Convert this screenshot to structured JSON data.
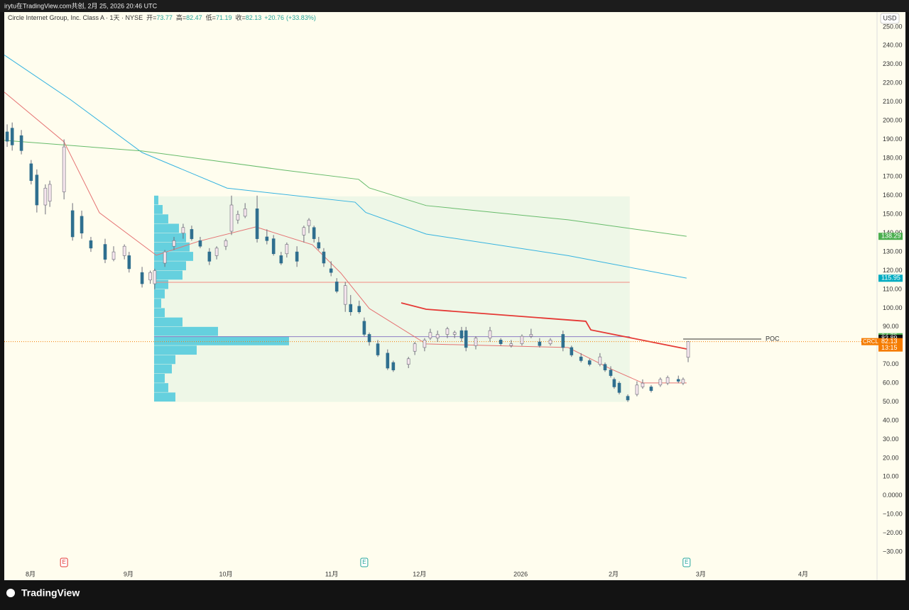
{
  "header": {
    "text": "irytu在TradingView.com共创, 2月 25, 2026 20:46 UTC"
  },
  "chart_data": {
    "type": "candlestick",
    "title": "Circle Internet Group, Inc. Class A · 1天 · NYSE",
    "legend": [
      {
        "label": "开=",
        "value": 73.77
      },
      {
        "label": "高=",
        "value": 82.47
      },
      {
        "label": "低=",
        "value": 71.19
      },
      {
        "label": "收=",
        "value": 82.13
      }
    ],
    "change": {
      "value": 20.76,
      "label": "+20.76"
    },
    "change_pct": {
      "value": 33.83,
      "label": "(+33.83%)"
    },
    "currency": "USD",
    "up_color": "#f6e6ee",
    "down_color": "#2f6f8f",
    "wick_color": "#6d6d7a",
    "x": [
      -7.4,
      -5.8,
      -2.9,
      0.2,
      2.0,
      4.7,
      6.1,
      10.6,
      13.3,
      16.2,
      19.1,
      23.6,
      26.3,
      29.7,
      31.2,
      35.3,
      37.9,
      39.3,
      42.5,
      45.4,
      48.3,
      51.0,
      53.7,
      56.6,
      58.9,
      61.8,
      63.6,
      65.6,
      67.9,
      71.7,
      74.8,
      76.9,
      79.3,
      81.1,
      84.3,
      86.5,
      88.1,
      89.7,
      91.2,
      92.8,
      95.1,
      96.9,
      99.6,
      101.3,
      104.0,
      105.6,
      107.2,
      109.9,
      113.0,
      114.8,
      119.6,
      121.6,
      124.7,
      126.5,
      128.8,
      131.9,
      134.2,
      136.4,
      137.8,
      140.9,
      145.4,
      148.8,
      152.1,
      155.5,
      158.4,
      161.1,
      164.5,
      168.5,
      171.2,
      174.2,
      176.9,
      180.2,
      181.8,
      183.6,
      184.7,
      186.3,
      189.0,
      191.9,
      193.7,
      196.4,
      199.3,
      201.6,
      205.0,
      206.5,
      208.1
    ],
    "open": [
      194,
      196,
      192,
      177,
      171,
      155,
      157,
      162,
      152,
      149,
      136,
      134,
      126,
      128,
      128,
      119,
      115,
      113,
      124,
      133,
      140,
      142,
      136,
      130,
      128,
      133,
      141,
      147,
      149,
      153,
      138,
      137,
      128,
      129,
      130,
      139,
      144,
      143,
      135,
      130,
      121,
      114,
      102,
      102,
      101,
      93,
      86,
      81,
      76,
      71,
      70,
      77,
      79,
      84,
      84,
      86,
      86,
      88,
      88,
      80,
      84,
      83,
      80,
      81,
      85,
      82,
      81,
      86,
      79,
      74,
      72,
      70,
      70,
      67,
      62,
      60,
      53,
      54,
      58,
      58,
      59,
      60,
      62,
      60,
      73.77
    ],
    "high": [
      198,
      199,
      195,
      179,
      174,
      166,
      168,
      190,
      156,
      152,
      138,
      137,
      133,
      134,
      130,
      122,
      120,
      121,
      131,
      138,
      145,
      144,
      138,
      132,
      133,
      137,
      160,
      152,
      156,
      160,
      142,
      139,
      130,
      135,
      133,
      144,
      148,
      144,
      138,
      132,
      125,
      116,
      114,
      107,
      104,
      95,
      87,
      83,
      78,
      72,
      74,
      82,
      84,
      89,
      88,
      90,
      88,
      90,
      90,
      85,
      90,
      84,
      83,
      86,
      89,
      84,
      84,
      88,
      80,
      76,
      73,
      76,
      71,
      69,
      63,
      61,
      54,
      61,
      62,
      59,
      63,
      64,
      64,
      63,
      82.47
    ],
    "low": [
      186,
      184,
      182,
      166,
      151,
      150,
      154,
      158,
      136,
      137,
      130,
      124,
      125,
      126,
      119,
      111,
      113,
      110,
      122,
      131,
      137,
      136,
      132,
      123,
      126,
      131,
      139,
      145,
      148,
      135,
      134,
      128,
      123,
      127,
      122,
      135,
      140,
      135,
      131,
      122,
      117,
      108,
      98,
      96,
      97,
      85,
      80,
      74,
      67,
      66,
      68,
      75,
      77,
      83,
      82,
      84,
      84,
      82,
      77,
      78,
      82,
      80,
      79,
      80,
      84,
      79,
      80,
      77,
      74,
      71,
      69,
      69,
      66,
      63,
      57,
      54,
      50,
      53,
      57,
      55,
      58,
      59,
      60,
      59,
      71.19
    ],
    "close": [
      189,
      187,
      184,
      168,
      155,
      164,
      166,
      186,
      138,
      140,
      132,
      126,
      130,
      133,
      121,
      113,
      119,
      120,
      130,
      136,
      143,
      137,
      133,
      125,
      132,
      136,
      155,
      150,
      153,
      137,
      136,
      129,
      124,
      134,
      125,
      143,
      147,
      137,
      132,
      124,
      119,
      109,
      112,
      98,
      98,
      86,
      82,
      75,
      68,
      67,
      73,
      81,
      83,
      87,
      86,
      89,
      87,
      84,
      79,
      84,
      88,
      81,
      81,
      85,
      86,
      80,
      83,
      79,
      75,
      72,
      70,
      74,
      67,
      64,
      58,
      55,
      51,
      59,
      60,
      56,
      62,
      63,
      61,
      62,
      82.13
    ],
    "xlim": [
      -8.31,
      267.87
    ],
    "xticks": [
      {
        "value": 0,
        "label": "8月"
      },
      {
        "value": 31,
        "label": "9月"
      },
      {
        "value": 61.8,
        "label": "10月"
      },
      {
        "value": 95.3,
        "label": "11月"
      },
      {
        "value": 123.1,
        "label": "12月"
      },
      {
        "value": 155.1,
        "label": "2026"
      },
      {
        "value": 184.5,
        "label": "2月"
      },
      {
        "value": 212.1,
        "label": "3月"
      },
      {
        "value": 244.5,
        "label": "4月"
      }
    ],
    "ylim": [
      -45.1,
      257.9
    ],
    "yticks": [
      {
        "value": 250,
        "label": "250.00"
      },
      {
        "value": 240,
        "label": "240.00"
      },
      {
        "value": 230,
        "label": "230.00"
      },
      {
        "value": 220,
        "label": "220.00"
      },
      {
        "value": 210,
        "label": "210.00"
      },
      {
        "value": 200,
        "label": "200.00"
      },
      {
        "value": 190,
        "label": "190.00"
      },
      {
        "value": 180,
        "label": "180.00"
      },
      {
        "value": 170,
        "label": "170.00"
      },
      {
        "value": 160,
        "label": "160.00"
      },
      {
        "value": 150,
        "label": "150.00"
      },
      {
        "value": 140,
        "label": "140.00"
      },
      {
        "value": 130,
        "label": "130.00"
      },
      {
        "value": 120,
        "label": "120.00"
      },
      {
        "value": 110,
        "label": "110.00"
      },
      {
        "value": 100,
        "label": "100.00"
      },
      {
        "value": 90,
        "label": "90.00"
      },
      {
        "value": 80,
        "label": "80.00"
      },
      {
        "value": 70,
        "label": "70.00"
      },
      {
        "value": 60,
        "label": "60.00"
      },
      {
        "value": 50,
        "label": "50.00"
      },
      {
        "value": 40,
        "label": "40.00"
      },
      {
        "value": 30,
        "label": "30.00"
      },
      {
        "value": 20,
        "label": "20.00"
      },
      {
        "value": 10,
        "label": "10.00"
      },
      {
        "value": 0,
        "label": "0.0000"
      },
      {
        "value": -10,
        "label": "−10.00"
      },
      {
        "value": -20,
        "label": "−20.00"
      },
      {
        "value": -30,
        "label": "−30.00"
      }
    ],
    "lines": [
      {
        "color": "#35b3e0",
        "x": [
          -8.3,
          12.8,
          35.3,
          62.2,
          102.7,
          106.1,
          125.2,
          170.1,
          207.6
        ],
        "values": [
          235,
          211,
          183,
          164,
          156.5,
          151,
          139.5,
          128,
          116
        ]
      },
      {
        "color": "#66bb6a",
        "x": [
          -8.3,
          35.3,
          80.2,
          103.8,
          107.2,
          125.2,
          170.1,
          207.6
        ],
        "values": [
          189.5,
          183.8,
          173.6,
          168.7,
          164.1,
          154.7,
          147.1,
          138.3
        ]
      },
      {
        "color": "#e57373",
        "x": [
          -8.3,
          10.6,
          21.8,
          39.8,
          53.3,
          71.3,
          89.2,
          98.2,
          107.2,
          125.2,
          170.1,
          183.6,
          193.7,
          207.6
        ],
        "values": [
          215.2,
          188.7,
          150.9,
          128.2,
          135.7,
          143.3,
          133.8,
          118.7,
          99.8,
          80.9,
          79,
          67.6,
          60.1,
          60.1
        ]
      },
      {
        "color": "#e53935",
        "x": [
          117.3,
          125.2,
          175.7,
          177.3,
          207.6
        ],
        "values": [
          102.8,
          99.4,
          93,
          88.4,
          78.2
        ]
      }
    ],
    "volume_profile": {
      "from": 39.1,
      "to": 189.6,
      "low": 50,
      "high": 159.6,
      "color": "#4cc9dc",
      "bins": [
        50,
        55,
        60,
        65,
        70,
        75,
        80,
        85,
        90,
        95,
        100,
        105,
        110,
        115,
        120,
        125,
        130,
        135,
        140,
        145,
        150,
        155,
        160
      ],
      "volumes": [
        30,
        20,
        15,
        25,
        30,
        60,
        190,
        90,
        40,
        15,
        10,
        15,
        20,
        40,
        45,
        55,
        50,
        45,
        35,
        20,
        12,
        6
      ]
    },
    "levels": [
      {
        "value": 84.8,
        "color": "#8e7cc3"
      },
      {
        "value": 113.8,
        "color": "#f28b82"
      }
    ],
    "poc": {
      "label": "POC",
      "value": 83.5
    },
    "price_tags": [
      {
        "value": 138.29,
        "color": "#4caf50"
      },
      {
        "value": 115.95,
        "color": "#00acc1"
      },
      {
        "value": 84.75,
        "color": "#4caf50"
      },
      {
        "value": 83.89,
        "color": "#111111"
      },
      {
        "value": 82.13,
        "color": "#f57c00"
      }
    ],
    "symbol_tag": {
      "label": "CRCL",
      "color": "#f57c00"
    },
    "countdown": "13:15",
    "events": [
      {
        "x": 10.6,
        "label": "E",
        "color": "#e53935"
      },
      {
        "x": 105.6,
        "label": "E",
        "color": "#26a69a"
      },
      {
        "x": 207.6,
        "label": "E",
        "color": "#26a69a"
      }
    ]
  },
  "footer": {
    "brand": "TradingView"
  }
}
